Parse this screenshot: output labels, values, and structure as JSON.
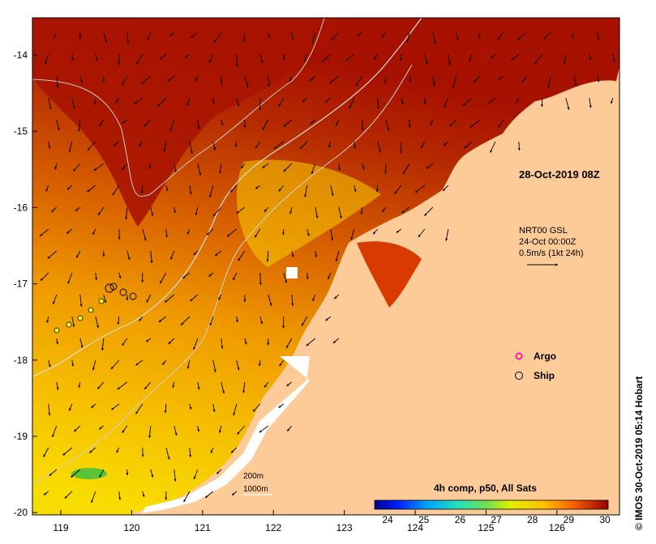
{
  "map": {
    "date_label": "28-Oct-2019 08Z",
    "current_info": {
      "line1": "NRT00 GSL",
      "line2": "24-Oct 00:00Z",
      "line3": "0.5m/s (1kt 24h)"
    },
    "legend": {
      "argo": "Argo",
      "ship": "Ship"
    },
    "isobaths": {
      "shallow": "200m",
      "deep": "1000m"
    },
    "colorbar": {
      "title": "4h comp, p50, All Sats",
      "ticks": [
        "24",
        "25",
        "26",
        "27",
        "28",
        "29",
        "30"
      ]
    },
    "credit": "© IMOS 30-Oct-2019 05:14 Hobart",
    "axes": {
      "x_ticks": [
        "119",
        "120",
        "121",
        "122",
        "123",
        "124",
        "125",
        "126"
      ],
      "y_ticks": [
        "-14",
        "-15",
        "-16",
        "-17",
        "-18",
        "-19",
        "-20"
      ]
    },
    "colors": {
      "land": "#fdcb98",
      "sea_cool": "#a61100",
      "sea_warm": "#f8e000",
      "no_data": "#ffffff"
    }
  }
}
